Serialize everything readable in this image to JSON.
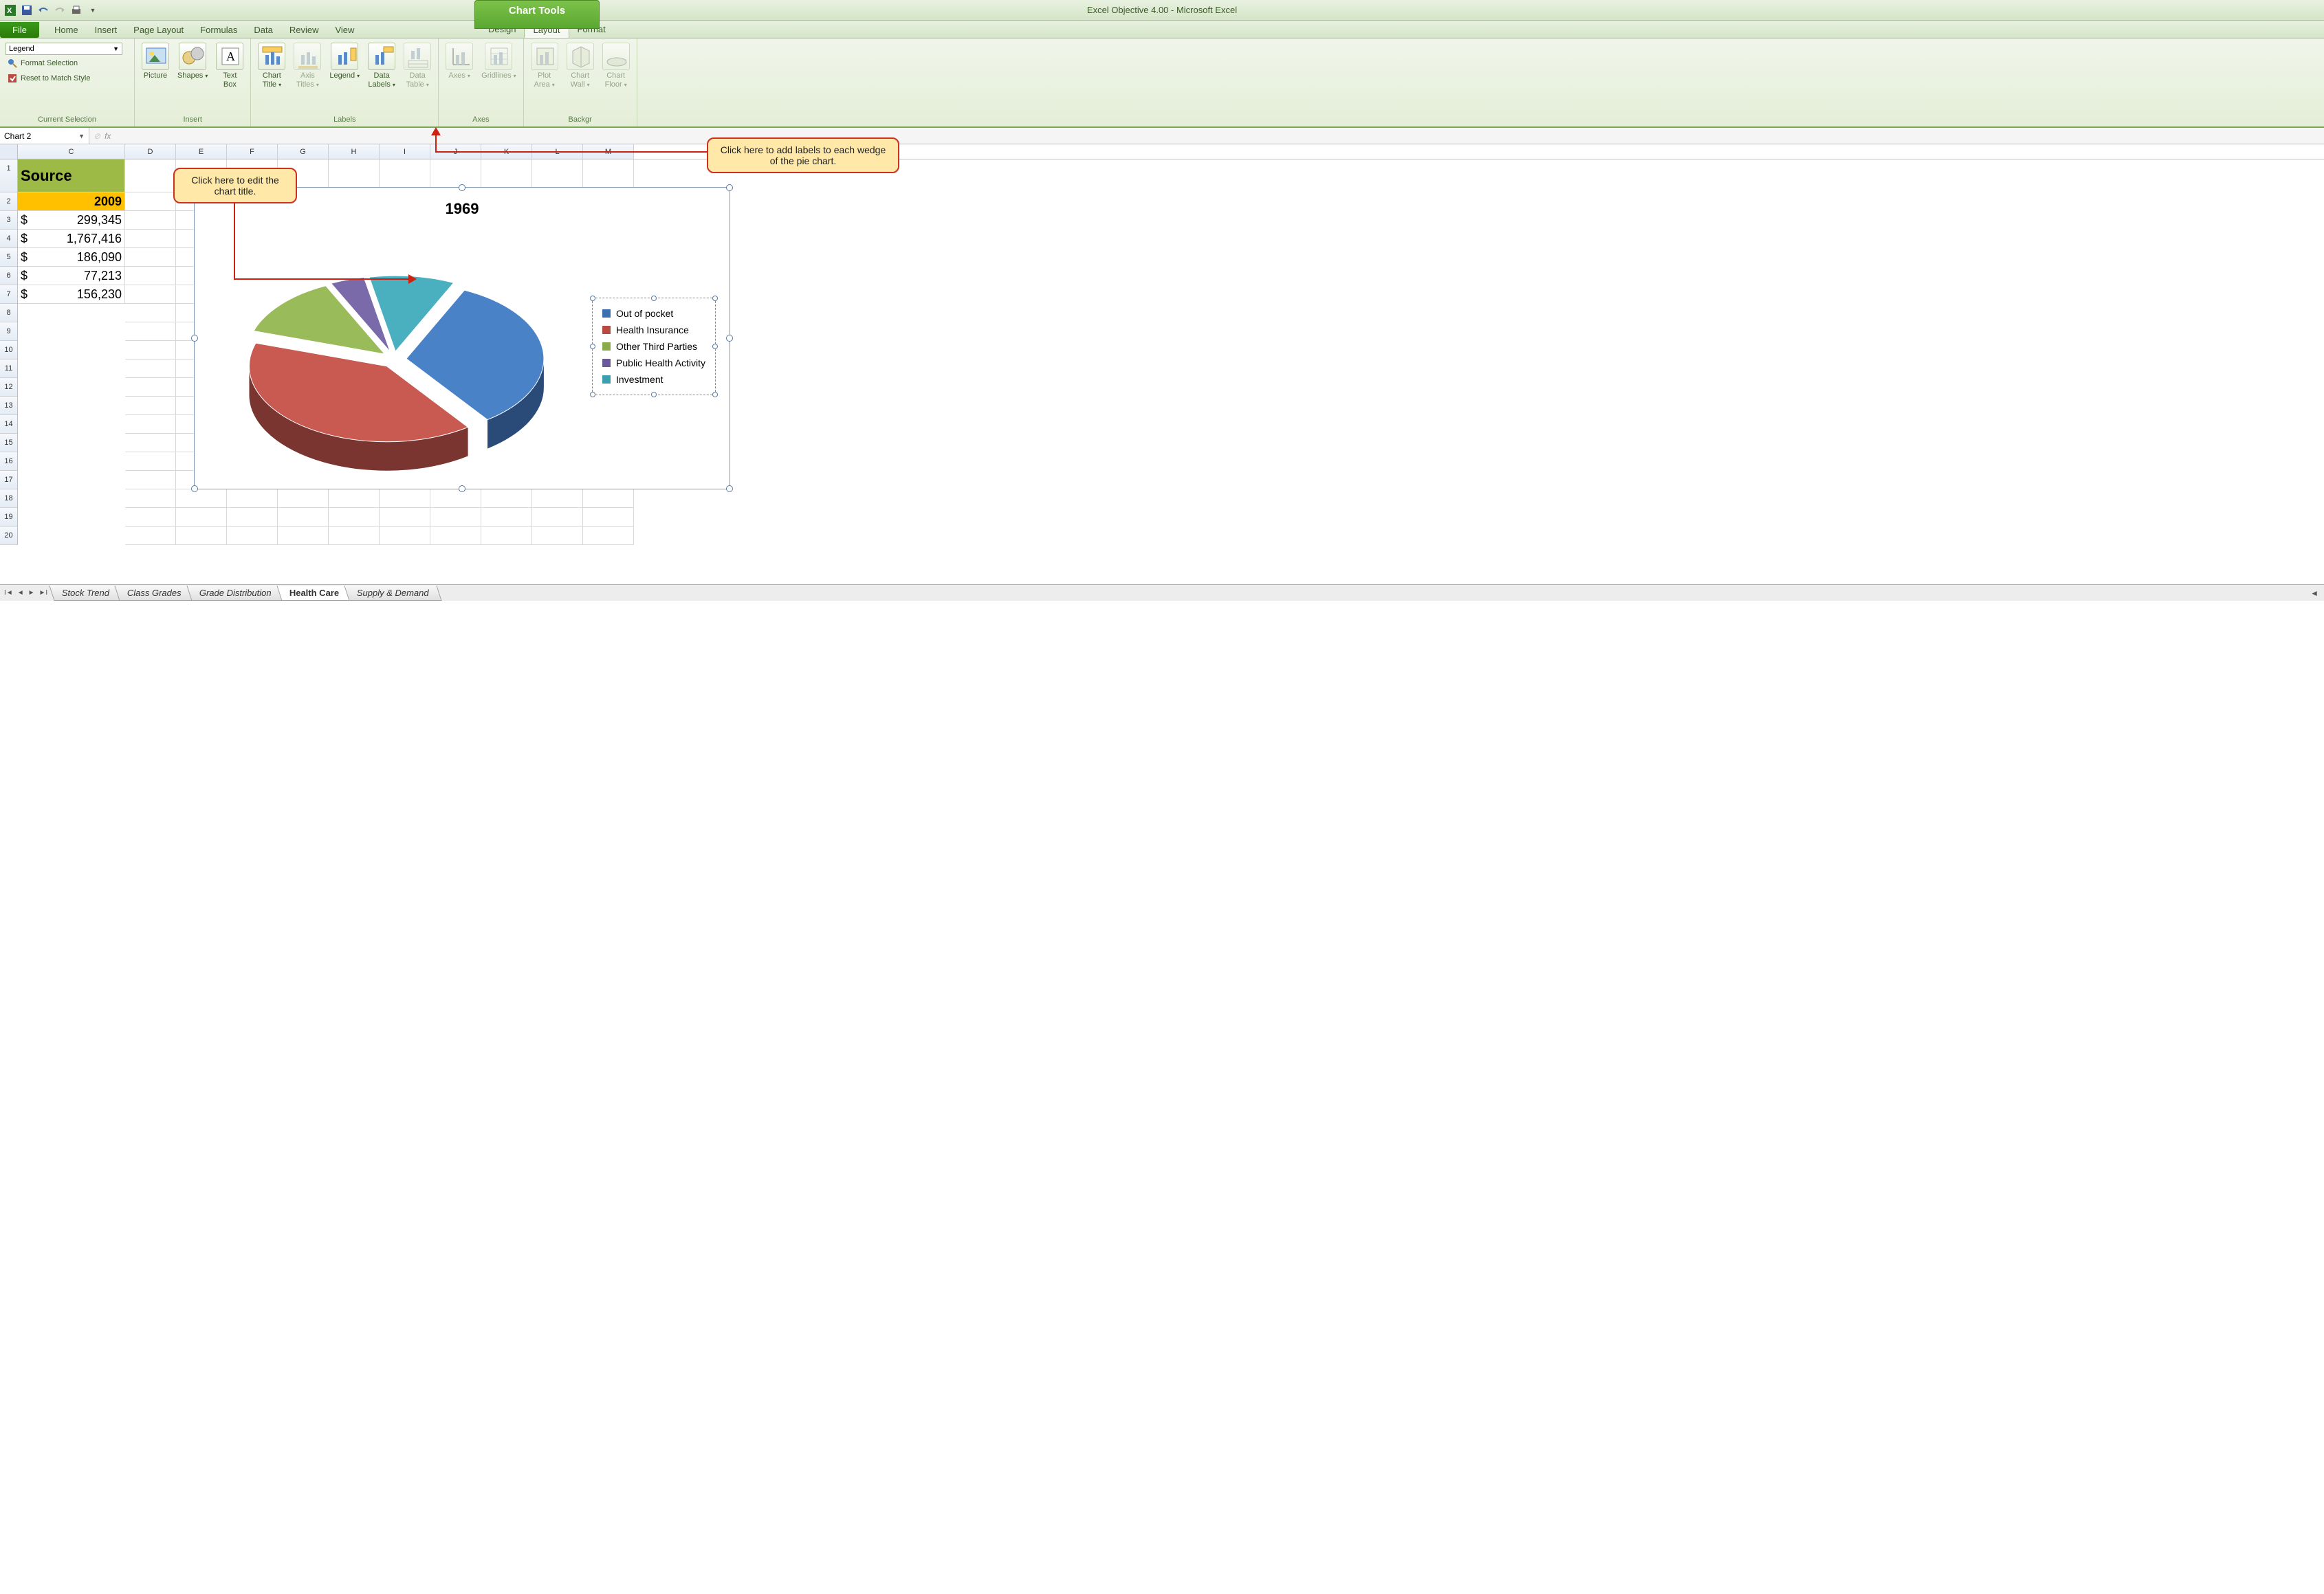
{
  "window": {
    "title": "Excel Objective 4.00 - Microsoft Excel",
    "contextual_label": "Chart Tools"
  },
  "tabs": {
    "file": "File",
    "list": [
      "Home",
      "Insert",
      "Page Layout",
      "Formulas",
      "Data",
      "Review",
      "View"
    ],
    "chart_tools": [
      "Design",
      "Layout",
      "Format"
    ],
    "active": "Layout"
  },
  "ribbon": {
    "current_selection": {
      "value": "Legend",
      "format": "Format Selection",
      "reset": "Reset to Match Style",
      "label": "Current Selection"
    },
    "insert": {
      "items": [
        "Picture",
        "Shapes",
        "Text Box"
      ],
      "label": "Insert"
    },
    "labels": {
      "items": [
        "Chart Title",
        "Axis Titles",
        "Legend",
        "Data Labels",
        "Data Table"
      ],
      "label": "Labels"
    },
    "axes": {
      "items": [
        "Axes",
        "Gridlines"
      ],
      "label": "Axes"
    },
    "background": {
      "items": [
        "Plot Area",
        "Chart Wall",
        "Chart Floor"
      ],
      "label": "Background"
    }
  },
  "name_box": "Chart 2",
  "columns": [
    {
      "l": "C",
      "w": 156
    },
    {
      "l": "D",
      "w": 74
    },
    {
      "l": "E",
      "w": 74
    },
    {
      "l": "F",
      "w": 74
    },
    {
      "l": "G",
      "w": 74
    },
    {
      "l": "H",
      "w": 74
    },
    {
      "l": "I",
      "w": 74
    },
    {
      "l": "J",
      "w": 74
    },
    {
      "l": "K",
      "w": 74
    },
    {
      "l": "L",
      "w": 74
    },
    {
      "l": "M",
      "w": 74
    }
  ],
  "rows": 20,
  "cells": {
    "source_label": "Source",
    "year": "2009",
    "values": [
      "299,345",
      "1,767,416",
      "186,090",
      "77,213",
      "156,230"
    ]
  },
  "chart": {
    "title": "1969",
    "legend": [
      {
        "label": "Out of pocket",
        "color": "#3a6fb0"
      },
      {
        "label": "Health Insurance",
        "color": "#b84a42"
      },
      {
        "label": "Other Third Parties",
        "color": "#8aab4a"
      },
      {
        "label": "Public Health Activity",
        "color": "#6a5a9a"
      },
      {
        "label": "Investment",
        "color": "#3aa0b0"
      }
    ],
    "slices": [
      {
        "pct": 33,
        "top": "#4a82c8",
        "side": "#2a4a78"
      },
      {
        "pct": 40,
        "top": "#c85a52",
        "side": "#7a3530"
      },
      {
        "pct": 13,
        "top": "#9abb5a",
        "side": "#5a7a35"
      },
      {
        "pct": 4,
        "top": "#7a6aaa",
        "side": "#4a3a6a"
      },
      {
        "pct": 10,
        "top": "#4ab0c0",
        "side": "#2a6a75"
      }
    ]
  },
  "sheets": [
    "Stock Trend",
    "Class Grades",
    "Grade Distribution",
    "Health Care",
    "Supply & Demand"
  ],
  "active_sheet": "Health Care",
  "callouts": {
    "title": "Click here to edit the chart title.",
    "labels": "Click here to add labels to each wedge of the pie chart."
  },
  "colors": {
    "ribbon_green": "#7aa850",
    "callout_bg": "#ffe8a8",
    "callout_border": "#cc3020"
  }
}
